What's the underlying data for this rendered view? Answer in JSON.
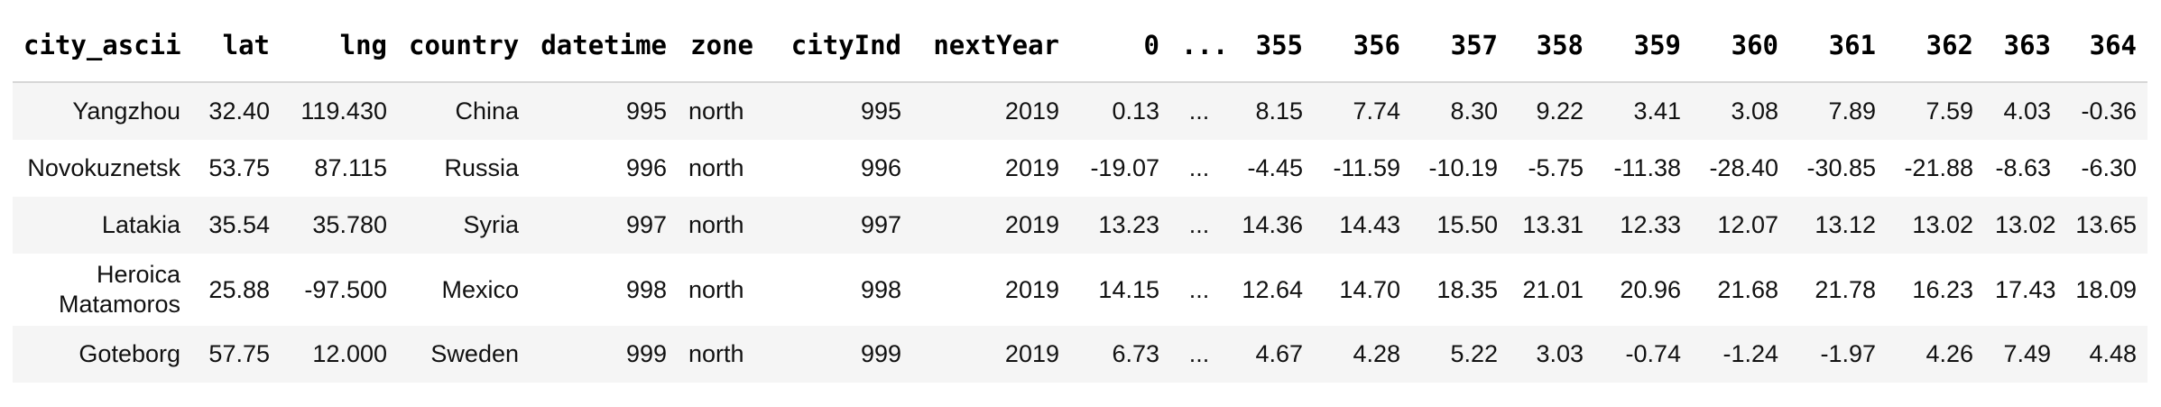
{
  "table": {
    "columns": [
      "city_ascii",
      "lat",
      "lng",
      "country",
      "datetime",
      "zone",
      "cityInd",
      "nextYear",
      "0",
      "...",
      "355",
      "356",
      "357",
      "358",
      "359",
      "360",
      "361",
      "362",
      "363",
      "364"
    ],
    "rows": [
      [
        "Yangzhou",
        "32.40",
        "119.430",
        "China",
        "995",
        "north",
        "995",
        "2019",
        "0.13",
        "...",
        "8.15",
        "7.74",
        "8.30",
        "9.22",
        "3.41",
        "3.08",
        "7.89",
        "7.59",
        "4.03",
        "-0.36"
      ],
      [
        "Novokuznetsk",
        "53.75",
        "87.115",
        "Russia",
        "996",
        "north",
        "996",
        "2019",
        "-19.07",
        "...",
        "-4.45",
        "-11.59",
        "-10.19",
        "-5.75",
        "-11.38",
        "-28.40",
        "-30.85",
        "-21.88",
        "-8.63",
        "-6.30"
      ],
      [
        "Latakia",
        "35.54",
        "35.780",
        "Syria",
        "997",
        "north",
        "997",
        "2019",
        "13.23",
        "...",
        "14.36",
        "14.43",
        "15.50",
        "13.31",
        "12.33",
        "12.07",
        "13.12",
        "13.02",
        "13.02",
        "13.65"
      ],
      [
        "Heroica Matamoros",
        "25.88",
        "-97.500",
        "Mexico",
        "998",
        "north",
        "998",
        "2019",
        "14.15",
        "...",
        "12.64",
        "14.70",
        "18.35",
        "21.01",
        "20.96",
        "21.68",
        "21.78",
        "16.23",
        "17.43",
        "18.09"
      ],
      [
        "Goteborg",
        "57.75",
        "12.000",
        "Sweden",
        "999",
        "north",
        "999",
        "2019",
        "6.73",
        "...",
        "4.67",
        "4.28",
        "5.22",
        "3.03",
        "-0.74",
        "-1.24",
        "-1.97",
        "4.26",
        "7.49",
        "4.48"
      ]
    ]
  }
}
